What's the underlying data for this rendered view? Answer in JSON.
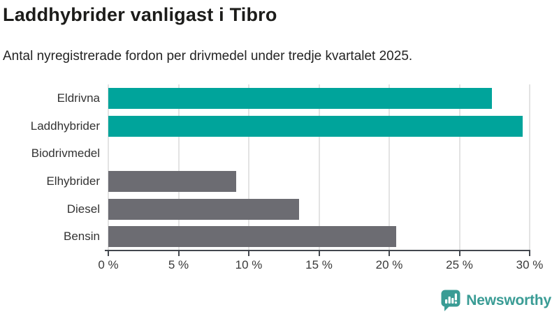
{
  "header": {
    "title": "Laddhybrider vanligast i Tibro",
    "subtitle": "Antal nyregistrerade fordon per drivmedel under tredje kvartalet 2025."
  },
  "chart_data": {
    "type": "bar",
    "orientation": "horizontal",
    "title": "Laddhybrider vanligast i Tibro",
    "subtitle": "Antal nyregistrerade fordon per drivmedel under tredje kvartalet 2025.",
    "categories": [
      "Eldrivna",
      "Laddhybrider",
      "Biodrivmedel",
      "Elhybrider",
      "Diesel",
      "Bensin"
    ],
    "values": [
      27.3,
      29.5,
      0,
      9.1,
      13.6,
      20.5
    ],
    "unit": "%",
    "xlim": [
      0,
      30
    ],
    "xticks": [
      0,
      5,
      10,
      15,
      20,
      25,
      30
    ],
    "xtick_labels": [
      "0 %",
      "5 %",
      "10 %",
      "15 %",
      "20 %",
      "25 %",
      "30 %"
    ],
    "bar_colors": [
      "#00a49b",
      "#00a49b",
      "#6c6c72",
      "#6c6c72",
      "#6c6c72",
      "#6c6c72"
    ],
    "highlight_color": "#00a49b",
    "default_color": "#6c6c72",
    "grid": true,
    "gridline_color": "#e3e3e3",
    "axis_color": "#43474e",
    "xlabel": "",
    "ylabel": "",
    "legend": false
  },
  "footer": {
    "brand": "Newsworthy",
    "brand_color": "#3a9c95",
    "logo_icon": "bar-chart-speech-bubble-icon"
  }
}
